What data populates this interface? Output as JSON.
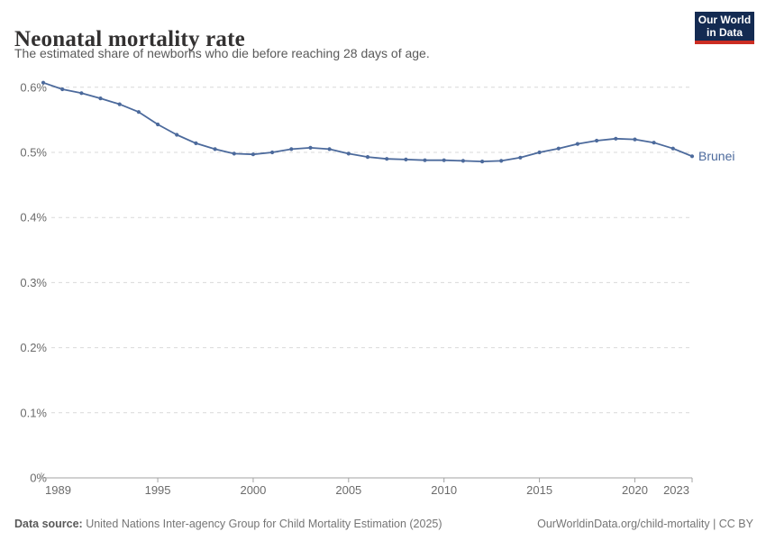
{
  "header": {
    "title": "Neonatal mortality rate",
    "subtitle": "The estimated share of newborns who die before reaching 28 days of age.",
    "logo_line1": "Our World",
    "logo_line2": "in Data"
  },
  "colors": {
    "series": "#4c6a9c",
    "grid": "#d9d9d9",
    "axis": "#a3a3a3",
    "tick_label": "#6b6b6b",
    "logo_bg": "#142b52",
    "logo_stripe": "#cb2d23"
  },
  "chart_data": {
    "type": "line",
    "title": "Neonatal mortality rate",
    "xlabel": "",
    "ylabel": "",
    "xlim": [
      1989,
      2023
    ],
    "ylim": [
      0,
      0.62
    ],
    "grid": "horizontal-dashed",
    "legend_position": "end-of-line-label",
    "x": [
      1989,
      1990,
      1991,
      1992,
      1993,
      1994,
      1995,
      1996,
      1997,
      1998,
      1999,
      2000,
      2001,
      2002,
      2003,
      2004,
      2005,
      2006,
      2007,
      2008,
      2009,
      2010,
      2011,
      2012,
      2013,
      2014,
      2015,
      2016,
      2017,
      2018,
      2019,
      2020,
      2021,
      2022,
      2023
    ],
    "series": [
      {
        "name": "Brunei",
        "color": "#4c6a9c",
        "values": [
          0.607,
          0.597,
          0.591,
          0.583,
          0.574,
          0.562,
          0.543,
          0.527,
          0.514,
          0.505,
          0.498,
          0.497,
          0.5,
          0.505,
          0.507,
          0.505,
          0.498,
          0.493,
          0.49,
          0.489,
          0.488,
          0.488,
          0.487,
          0.486,
          0.487,
          0.492,
          0.5,
          0.506,
          0.513,
          0.518,
          0.521,
          0.52,
          0.515,
          0.506,
          0.494
        ]
      }
    ],
    "x_ticks": [
      1989,
      1995,
      2000,
      2005,
      2010,
      2015,
      2020,
      2023
    ],
    "y_ticks": [
      0,
      0.1,
      0.2,
      0.3,
      0.4,
      0.5,
      0.6
    ],
    "y_tick_labels": [
      "0%",
      "0.1%",
      "0.2%",
      "0.3%",
      "0.4%",
      "0.5%",
      "0.6%"
    ]
  },
  "footer": {
    "datasource_label": "Data source:",
    "datasource_text": " United Nations Inter-agency Group for Child Mortality Estimation (2025)",
    "credit": "OurWorldinData.org/child-mortality | CC BY"
  }
}
